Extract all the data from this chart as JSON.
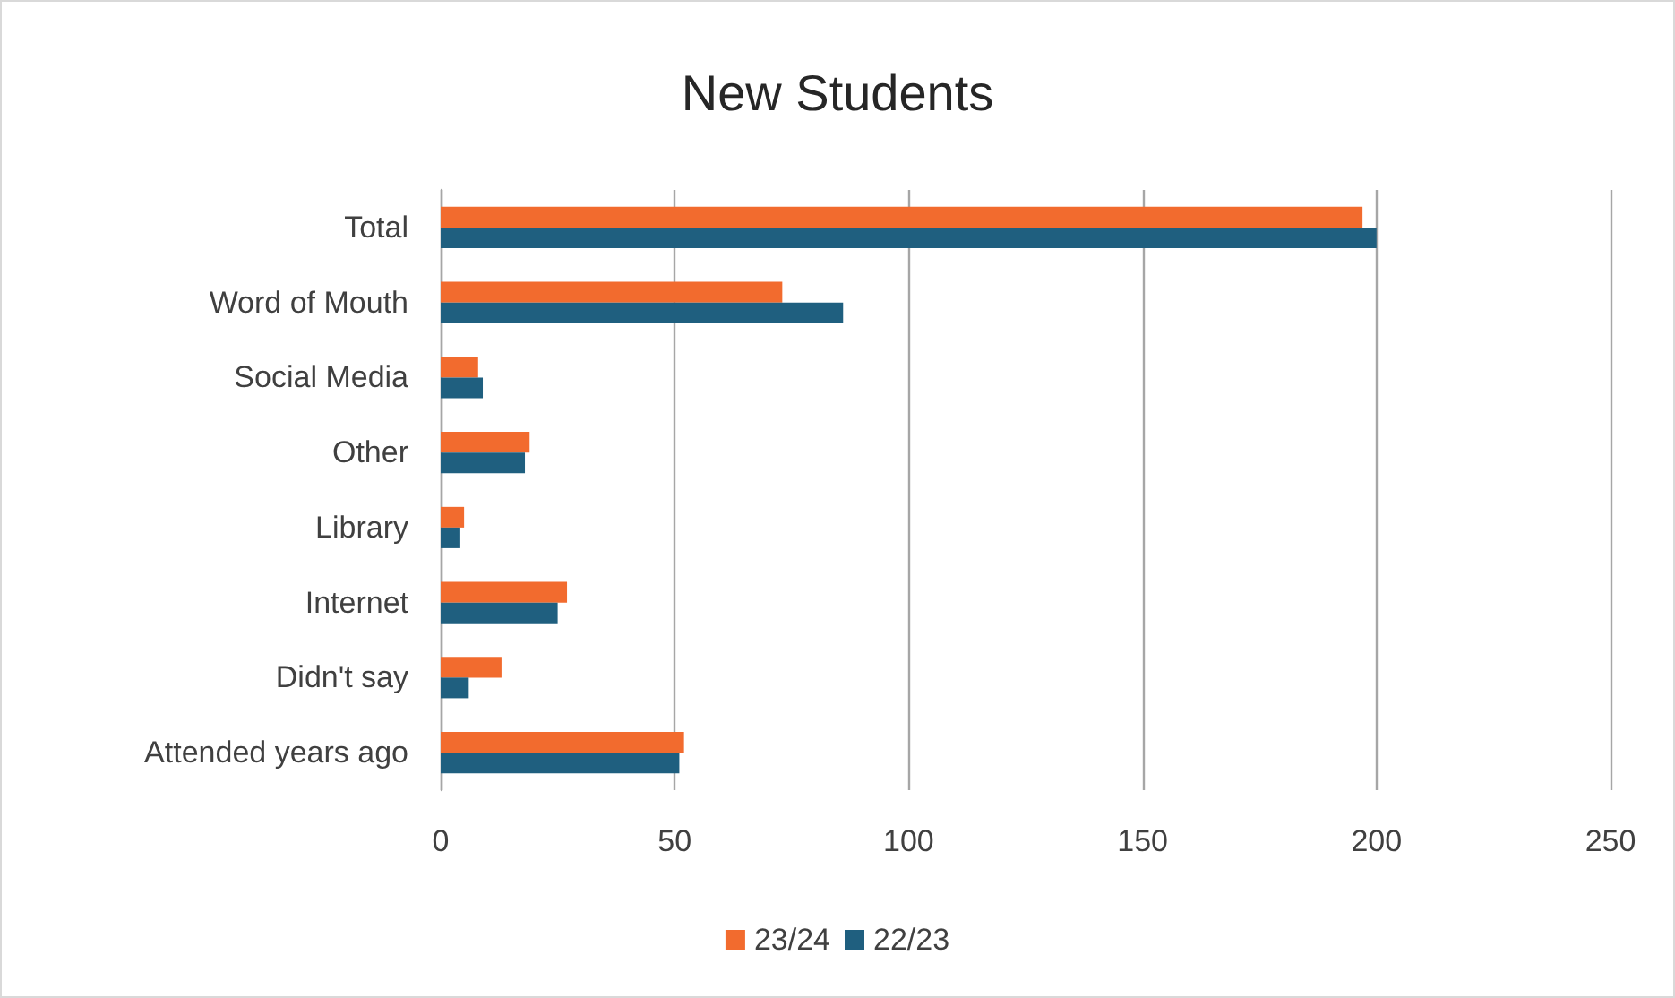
{
  "chart_data": {
    "type": "bar",
    "title": "New Students",
    "orientation": "horizontal",
    "categories": [
      "Total",
      "Word of Mouth",
      "Social Media",
      "Other",
      "Library",
      "Internet",
      "Didn't say",
      "Attended years ago"
    ],
    "series": [
      {
        "name": "23/24",
        "color": "#f26b2e",
        "values": [
          197,
          73,
          8,
          19,
          5,
          27,
          13,
          52
        ]
      },
      {
        "name": "22/23",
        "color": "#1f5f7f",
        "values": [
          200,
          86,
          9,
          18,
          4,
          25,
          6,
          51
        ]
      }
    ],
    "xlim": [
      0,
      250
    ],
    "xticks": [
      0,
      50,
      100,
      150,
      200,
      250
    ],
    "grid": "x",
    "legend": "bottom"
  }
}
